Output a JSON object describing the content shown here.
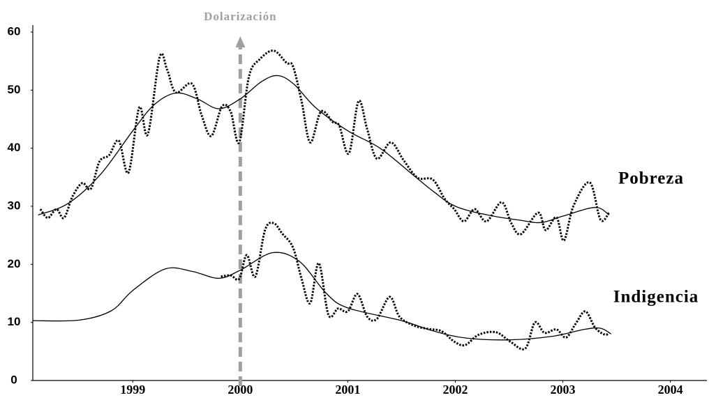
{
  "chart_data": {
    "type": "line",
    "annotation": {
      "text": "Dolarización",
      "x": 2000,
      "color": "#a0a0a0"
    },
    "xlim": [
      1998.07,
      2004.34
    ],
    "ylim": [
      0,
      60
    ],
    "xticks": [
      1999,
      2000,
      2001,
      2002,
      2003,
      2004
    ],
    "yticks": [
      0,
      10,
      20,
      30,
      40,
      50,
      60
    ],
    "series": [
      {
        "name": "Pobreza",
        "color": "#000000",
        "line_style": "dotted",
        "x": [
          1998.14,
          1998.21,
          1998.29,
          1998.36,
          1998.44,
          1998.53,
          1998.61,
          1998.69,
          1998.78,
          1998.87,
          1998.96,
          1999.06,
          1999.14,
          1999.25,
          1999.32,
          1999.4,
          1999.55,
          1999.64,
          1999.73,
          1999.83,
          1999.91,
          1999.99,
          2000.08,
          2000.18,
          2000.31,
          2000.43,
          2000.49,
          2000.57,
          2000.65,
          2000.75,
          2000.86,
          2000.92,
          2001.01,
          2001.1,
          2001.18,
          2001.27,
          2001.4,
          2001.52,
          2001.65,
          2001.79,
          2001.9,
          2001.99,
          2002.08,
          2002.18,
          2002.29,
          2002.43,
          2002.52,
          2002.61,
          2002.77,
          2002.84,
          2002.94,
          2003.01,
          2003.1,
          2003.25,
          2003.35,
          2003.43
        ],
        "values": [
          29.5,
          28,
          29.5,
          28,
          31.7,
          34,
          33,
          37.7,
          38.8,
          41.3,
          35.8,
          47,
          42.4,
          55.7,
          53.5,
          49.6,
          51.1,
          45.7,
          42.1,
          47.2,
          46.3,
          41,
          52.3,
          55.3,
          56.8,
          54.7,
          54.1,
          48.1,
          41,
          46.3,
          44.5,
          43.9,
          39.1,
          48.1,
          43.3,
          38.2,
          41,
          37.9,
          34.9,
          34.6,
          31.3,
          29.5,
          27.4,
          29.5,
          27.4,
          30.7,
          27.1,
          25.2,
          28.9,
          25.9,
          28.1,
          24.1,
          30.1,
          34.1,
          27.7,
          28.9
        ]
      },
      {
        "color": "#000000",
        "line_style": "solid",
        "x": [
          1998.12,
          1998.4,
          1998.7,
          1999.0,
          1999.2,
          1999.4,
          1999.6,
          1999.8,
          2000.0,
          2000.2,
          2000.35,
          2000.5,
          2000.7,
          2001.0,
          2001.3,
          2001.6,
          2001.8,
          2002.0,
          2002.3,
          2002.6,
          2002.8,
          2003.0,
          2003.3,
          2003.43
        ],
        "values": [
          28.5,
          30.5,
          35.5,
          43,
          47.5,
          49.5,
          48.5,
          46.8,
          48.5,
          51.5,
          52.5,
          51,
          47,
          43,
          40,
          35.5,
          32.5,
          30,
          28.5,
          27.6,
          27.2,
          28.3,
          29.8,
          28.5
        ]
      },
      {
        "name": "Indigencia",
        "color": "#000000",
        "line_style": "dotted",
        "x": [
          1999.82,
          1999.91,
          1999.99,
          2000.06,
          2000.14,
          2000.23,
          2000.31,
          2000.39,
          2000.49,
          2000.57,
          2000.65,
          2000.73,
          2000.82,
          2000.91,
          2001.0,
          2001.09,
          2001.18,
          2001.27,
          2001.39,
          2001.48,
          2001.61,
          2001.74,
          2001.87,
          2001.99,
          2002.09,
          2002.22,
          2002.38,
          2002.51,
          2002.65,
          2002.74,
          2002.83,
          2002.94,
          2003.03,
          2003.12,
          2003.21,
          2003.3,
          2003.39,
          2003.43
        ],
        "values": [
          17.9,
          18.1,
          17.5,
          21.6,
          17.9,
          25.9,
          27.1,
          25.3,
          22.9,
          17.5,
          13.3,
          20.2,
          11.3,
          12.4,
          11.9,
          14.9,
          11,
          10.6,
          14.4,
          11,
          9.5,
          8.9,
          8.5,
          6.7,
          6.1,
          7.9,
          8.3,
          6.7,
          5.5,
          10,
          8.2,
          8.8,
          7.4,
          9.8,
          11.9,
          9.1,
          7.9,
          8.2
        ]
      },
      {
        "color": "#000000",
        "line_style": "solid",
        "x": [
          1998.07,
          1998.5,
          1998.8,
          1999.0,
          1999.3,
          1999.55,
          1999.8,
          2000.0,
          2000.3,
          2000.55,
          2000.8,
          2001.0,
          2001.5,
          2001.8,
          2002.1,
          2002.5,
          2002.9,
          2003.2,
          2003.35,
          2003.45
        ],
        "values": [
          10.3,
          10.4,
          12,
          15.5,
          19.2,
          18.8,
          17.6,
          19,
          22,
          20.5,
          15,
          12.5,
          10.3,
          8.5,
          7.3,
          7,
          7.6,
          8.8,
          9,
          8
        ]
      }
    ]
  }
}
